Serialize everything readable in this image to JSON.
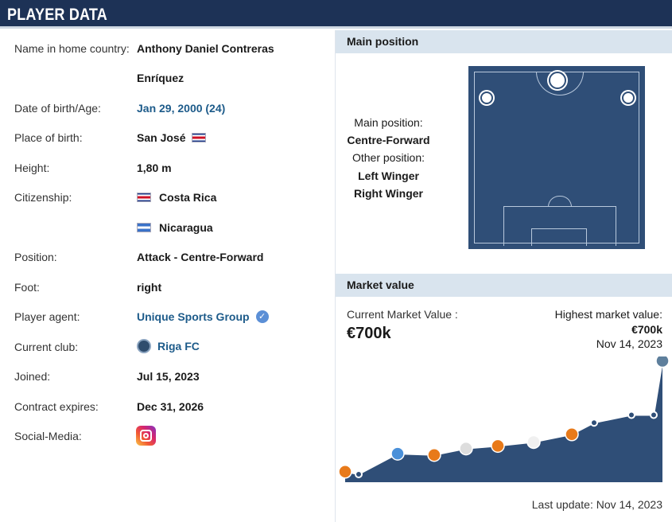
{
  "header": {
    "title": "PLAYER DATA"
  },
  "info": {
    "name_label": "Name in home country:",
    "name_value_line1": "Anthony Daniel Contreras",
    "name_value_line2": "Enríquez",
    "dob_label": "Date of birth/Age:",
    "dob_value": "Jan 29, 2000 (24)",
    "pob_label": "Place of birth:",
    "pob_value": "San José",
    "height_label": "Height:",
    "height_value": "1,80 m",
    "citizenship_label": "Citizenship:",
    "citizenship_1": "Costa Rica",
    "citizenship_2": "Nicaragua",
    "position_label": "Position:",
    "position_value": "Attack - Centre-Forward",
    "foot_label": "Foot:",
    "foot_value": "right",
    "agent_label": "Player agent:",
    "agent_value": "Unique Sports Group",
    "club_label": "Current club:",
    "club_value": "Riga FC",
    "joined_label": "Joined:",
    "joined_value": "Jul 15, 2023",
    "contract_label": "Contract expires:",
    "contract_value": "Dec 31, 2026",
    "social_label": "Social-Media:",
    "social_icon": "instagram-icon"
  },
  "main_position": {
    "title": "Main position",
    "main_label": "Main position:",
    "main_value": "Centre-Forward",
    "other_label": "Other position:",
    "other_1": "Left Winger",
    "other_2": "Right Winger"
  },
  "market_value": {
    "title": "Market value",
    "current_label": "Current Market Value :",
    "current_value": "€700k",
    "highest_label": "Highest market value:",
    "highest_value": "€700k",
    "highest_date": "Nov 14, 2023",
    "last_update": "Last update: Nov 14, 2023"
  },
  "colors": {
    "header_bg": "#1d3256",
    "section_bg": "#d9e4ee",
    "link": "#1d5b8a",
    "chart_fill": "#2f4e77",
    "pitch": "#2f4e77"
  },
  "chart_data": {
    "type": "area",
    "series": [
      {
        "values": [
          0.02,
          0.0,
          0.16,
          0.15,
          0.2,
          0.22,
          0.25,
          0.31,
          0.4,
          0.46,
          0.46,
          0.88
        ]
      }
    ],
    "grid": false
  }
}
